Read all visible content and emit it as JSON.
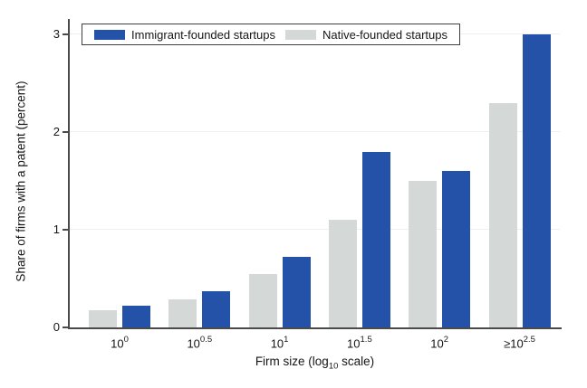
{
  "chart_data": {
    "type": "bar",
    "title": "",
    "categories": [
      "10^0",
      "10^0.5",
      "10^1",
      "10^1.5",
      "10^2",
      "≥10^2.5"
    ],
    "series": [
      {
        "name": "Immigrant-founded startups",
        "color": "#2452a8",
        "values": [
          0.22,
          0.37,
          0.72,
          1.8,
          1.6,
          3.0
        ]
      },
      {
        "name": "Native-founded startups",
        "color": "#d4d8d6",
        "values": [
          0.18,
          0.29,
          0.55,
          1.1,
          1.5,
          2.3
        ]
      }
    ],
    "group_order_series_indices": [
      1,
      0
    ],
    "xlabel": "Firm size (log10 scale)",
    "xlabel_parts": {
      "pre": "Firm size (log",
      "sub": "10",
      "post": " scale)"
    },
    "ylabel": "Share of firms with a patent (percent)",
    "yticks": [
      0,
      1,
      2,
      3
    ],
    "ylim": [
      0,
      3
    ],
    "grid": "horizontal-light",
    "legend_position": "top-left-inside",
    "axis_color": "#4a4a4a",
    "gridline_color": "#edf0f1",
    "legend_border_color": "#3f3f3f"
  }
}
